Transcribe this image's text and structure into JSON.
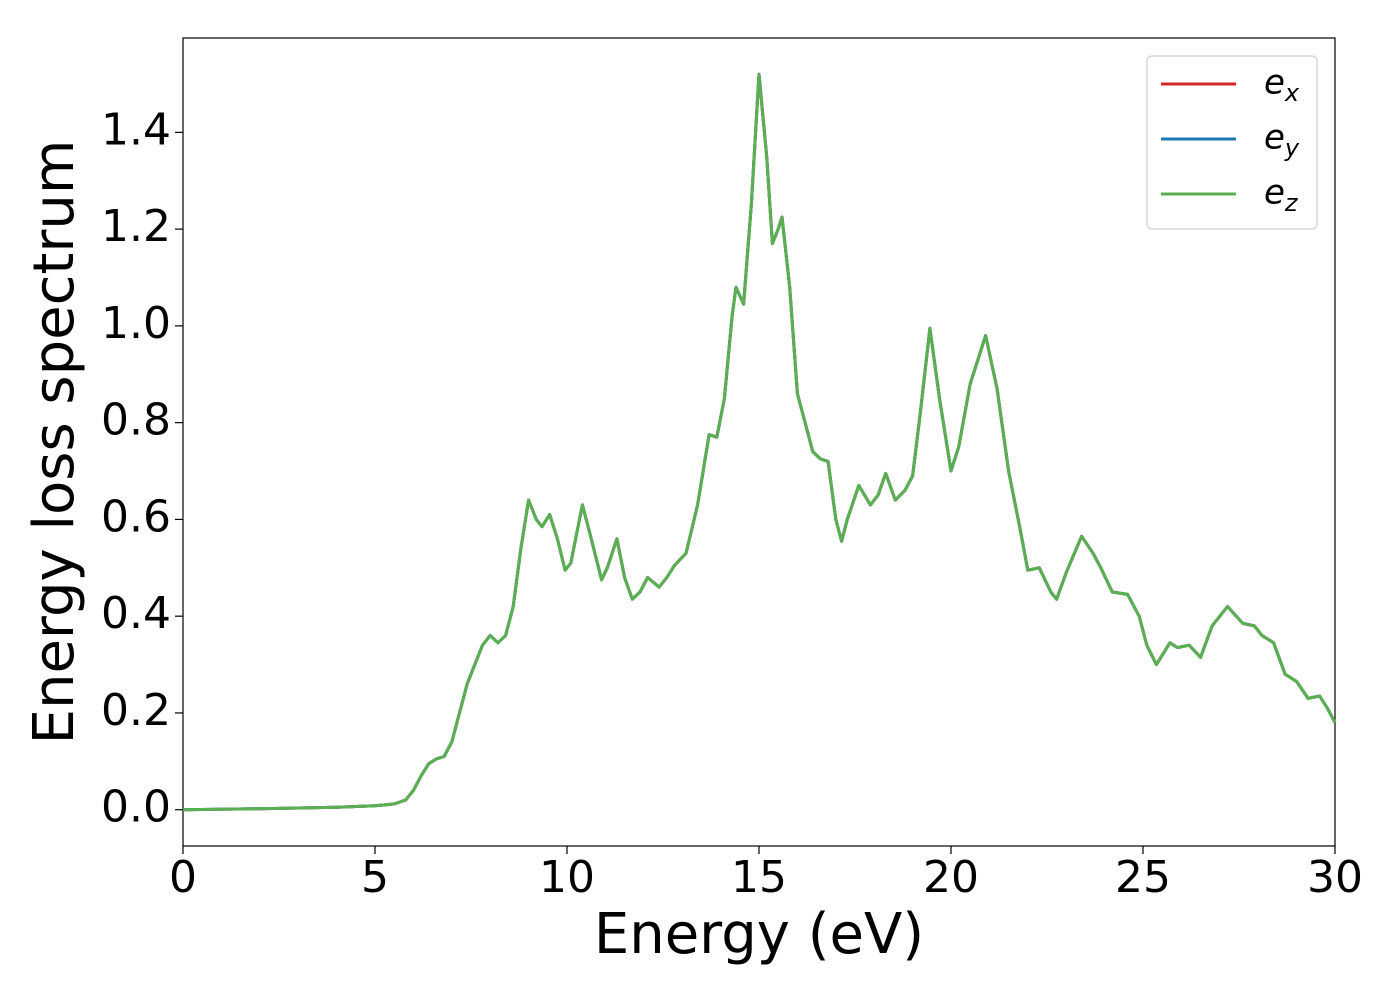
{
  "chart_data": {
    "type": "line",
    "xlabel": "Energy (eV)",
    "ylabel": "Energy loss spectrum",
    "xlim": [
      0,
      30
    ],
    "ylim": [
      -0.075,
      1.595
    ],
    "xticks": [
      0,
      5,
      10,
      15,
      20,
      25,
      30
    ],
    "yticks": [
      {
        "value": 0,
        "label": "0.0"
      },
      0.2,
      0.4,
      0.6,
      0.8,
      {
        "value": 1,
        "label": "1.0"
      },
      1.2,
      1.4
    ],
    "grid": false,
    "legend": "upper right",
    "x": [
      0,
      2,
      4,
      5,
      5.5,
      5.8,
      6.0,
      6.2,
      6.4,
      6.6,
      6.8,
      7.0,
      7.2,
      7.4,
      7.6,
      7.8,
      8.0,
      8.2,
      8.4,
      8.6,
      8.8,
      9.0,
      9.2,
      9.35,
      9.55,
      9.75,
      9.95,
      10.1,
      10.4,
      10.6,
      10.9,
      11.05,
      11.3,
      11.5,
      11.7,
      11.9,
      12.1,
      12.4,
      12.6,
      12.8,
      13.1,
      13.4,
      13.7,
      13.9,
      14.1,
      14.3,
      14.4,
      14.6,
      14.8,
      15.0,
      15.2,
      15.35,
      15.5,
      15.6,
      15.8,
      16.0,
      16.2,
      16.4,
      16.6,
      16.8,
      17.0,
      17.15,
      17.3,
      17.6,
      17.9,
      18.1,
      18.3,
      18.55,
      18.8,
      19.0,
      19.2,
      19.45,
      19.7,
      20.0,
      20.2,
      20.5,
      20.9,
      21.2,
      21.5,
      21.8,
      22.0,
      22.3,
      22.6,
      22.75,
      23.0,
      23.4,
      23.7,
      23.9,
      24.2,
      24.6,
      24.9,
      25.1,
      25.35,
      25.7,
      25.9,
      26.2,
      26.5,
      26.8,
      27.2,
      27.6,
      27.9,
      28.1,
      28.4,
      28.7,
      29.0,
      29.3,
      29.6,
      29.8,
      30
    ],
    "series": [
      {
        "name": "ex",
        "color": "#d62728",
        "values": [
          0,
          0.002,
          0.005,
          0.008,
          0.012,
          0.02,
          0.04,
          0.07,
          0.095,
          0.105,
          0.11,
          0.14,
          0.2,
          0.26,
          0.3,
          0.34,
          0.36,
          0.345,
          0.36,
          0.42,
          0.54,
          0.64,
          0.6,
          0.585,
          0.61,
          0.56,
          0.495,
          0.51,
          0.63,
          0.57,
          0.475,
          0.5,
          0.56,
          0.48,
          0.435,
          0.45,
          0.48,
          0.46,
          0.48,
          0.505,
          0.53,
          0.63,
          0.775,
          0.77,
          0.85,
          1.02,
          1.08,
          1.045,
          1.25,
          1.52,
          1.35,
          1.17,
          1.2,
          1.225,
          1.08,
          0.86,
          0.8,
          0.74,
          0.725,
          0.72,
          0.6,
          0.555,
          0.6,
          0.67,
          0.63,
          0.65,
          0.695,
          0.64,
          0.66,
          0.69,
          0.82,
          0.995,
          0.85,
          0.7,
          0.75,
          0.88,
          0.98,
          0.87,
          0.7,
          0.58,
          0.495,
          0.5,
          0.45,
          0.435,
          0.49,
          0.565,
          0.53,
          0.5,
          0.45,
          0.445,
          0.4,
          0.34,
          0.3,
          0.345,
          0.335,
          0.34,
          0.315,
          0.38,
          0.42,
          0.385,
          0.38,
          0.36,
          0.345,
          0.28,
          0.265,
          0.23,
          0.235,
          0.21,
          0.18
        ]
      },
      {
        "name": "ey",
        "color": "#1f77b4",
        "values": [
          0,
          0.002,
          0.005,
          0.008,
          0.012,
          0.02,
          0.04,
          0.07,
          0.095,
          0.105,
          0.11,
          0.14,
          0.2,
          0.26,
          0.3,
          0.34,
          0.36,
          0.345,
          0.36,
          0.42,
          0.54,
          0.64,
          0.6,
          0.585,
          0.61,
          0.56,
          0.495,
          0.51,
          0.63,
          0.57,
          0.475,
          0.5,
          0.56,
          0.48,
          0.435,
          0.45,
          0.48,
          0.46,
          0.48,
          0.505,
          0.53,
          0.63,
          0.775,
          0.77,
          0.85,
          1.02,
          1.08,
          1.045,
          1.25,
          1.52,
          1.35,
          1.17,
          1.2,
          1.225,
          1.08,
          0.86,
          0.8,
          0.74,
          0.725,
          0.72,
          0.6,
          0.555,
          0.6,
          0.67,
          0.63,
          0.65,
          0.695,
          0.64,
          0.66,
          0.69,
          0.82,
          0.995,
          0.85,
          0.7,
          0.75,
          0.88,
          0.98,
          0.87,
          0.7,
          0.58,
          0.495,
          0.5,
          0.45,
          0.435,
          0.49,
          0.565,
          0.53,
          0.5,
          0.45,
          0.445,
          0.4,
          0.34,
          0.3,
          0.345,
          0.335,
          0.34,
          0.315,
          0.38,
          0.42,
          0.385,
          0.38,
          0.36,
          0.345,
          0.28,
          0.265,
          0.23,
          0.235,
          0.21,
          0.18
        ]
      },
      {
        "name": "ez",
        "color": "#5aaf50",
        "values": [
          0,
          0.002,
          0.005,
          0.008,
          0.012,
          0.02,
          0.04,
          0.07,
          0.095,
          0.105,
          0.11,
          0.14,
          0.2,
          0.26,
          0.3,
          0.34,
          0.36,
          0.345,
          0.36,
          0.42,
          0.54,
          0.64,
          0.6,
          0.585,
          0.61,
          0.56,
          0.495,
          0.51,
          0.63,
          0.57,
          0.475,
          0.5,
          0.56,
          0.48,
          0.435,
          0.45,
          0.48,
          0.46,
          0.48,
          0.505,
          0.53,
          0.63,
          0.775,
          0.77,
          0.85,
          1.02,
          1.08,
          1.045,
          1.25,
          1.52,
          1.35,
          1.17,
          1.2,
          1.225,
          1.08,
          0.86,
          0.8,
          0.74,
          0.725,
          0.72,
          0.6,
          0.555,
          0.6,
          0.67,
          0.63,
          0.65,
          0.695,
          0.64,
          0.66,
          0.69,
          0.82,
          0.995,
          0.85,
          0.7,
          0.75,
          0.88,
          0.98,
          0.87,
          0.7,
          0.58,
          0.495,
          0.5,
          0.45,
          0.435,
          0.49,
          0.565,
          0.53,
          0.5,
          0.45,
          0.445,
          0.4,
          0.34,
          0.3,
          0.345,
          0.335,
          0.34,
          0.315,
          0.38,
          0.42,
          0.385,
          0.38,
          0.36,
          0.345,
          0.28,
          0.265,
          0.23,
          0.235,
          0.21,
          0.18
        ]
      }
    ]
  }
}
